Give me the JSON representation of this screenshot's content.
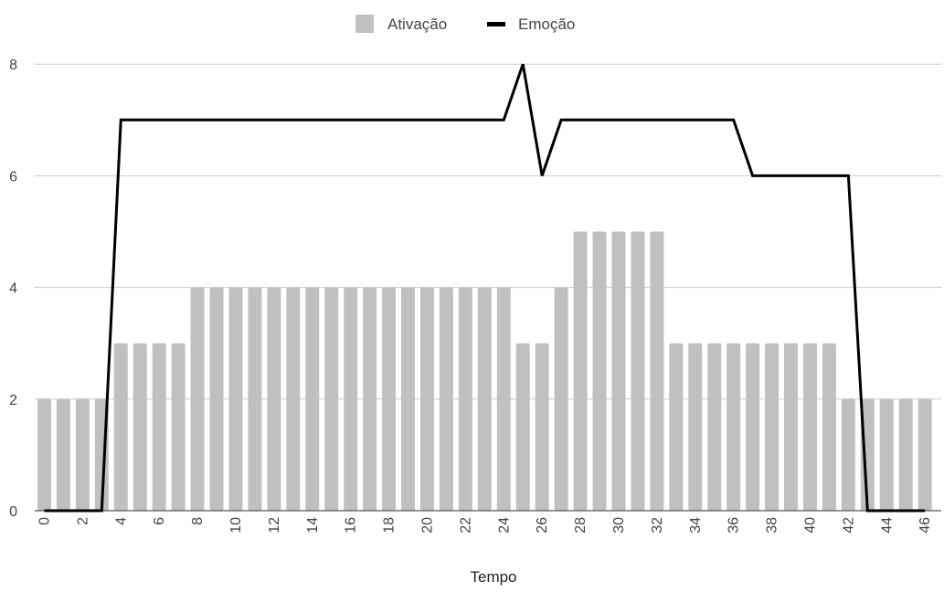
{
  "chart_data": {
    "type": "bar",
    "title": "",
    "xlabel": "Tempo",
    "ylabel": "",
    "legend_position": "top",
    "grid": true,
    "ylim": [
      0,
      8
    ],
    "yticks": [
      0,
      2,
      4,
      6,
      8
    ],
    "x": [
      0,
      1,
      2,
      3,
      4,
      5,
      6,
      7,
      8,
      9,
      10,
      11,
      12,
      13,
      14,
      15,
      16,
      17,
      18,
      19,
      20,
      21,
      22,
      23,
      24,
      25,
      26,
      27,
      28,
      29,
      30,
      31,
      32,
      33,
      34,
      35,
      36,
      37,
      38,
      39,
      40,
      41,
      42,
      43,
      44,
      45,
      46
    ],
    "xticks": [
      0,
      2,
      4,
      6,
      8,
      10,
      12,
      14,
      16,
      18,
      20,
      22,
      24,
      26,
      28,
      30,
      32,
      34,
      36,
      38,
      40,
      42,
      44,
      46
    ],
    "series": [
      {
        "name": "Ativação",
        "type": "bar",
        "color": "#c0c0c0",
        "values": [
          2,
          2,
          2,
          2,
          3,
          3,
          3,
          3,
          4,
          4,
          4,
          4,
          4,
          4,
          4,
          4,
          4,
          4,
          4,
          4,
          4,
          4,
          4,
          4,
          4,
          3,
          3,
          4,
          5,
          5,
          5,
          5,
          5,
          3,
          3,
          3,
          3,
          3,
          3,
          3,
          3,
          3,
          2,
          2,
          2,
          2,
          2
        ]
      },
      {
        "name": "Emoção",
        "type": "line",
        "color": "#000000",
        "values": [
          0,
          0,
          0,
          0,
          7,
          7,
          7,
          7,
          7,
          7,
          7,
          7,
          7,
          7,
          7,
          7,
          7,
          7,
          7,
          7,
          7,
          7,
          7,
          7,
          7,
          8,
          6,
          7,
          7,
          7,
          7,
          7,
          7,
          7,
          7,
          7,
          7,
          6,
          6,
          6,
          6,
          6,
          6,
          0,
          0,
          0,
          0
        ]
      }
    ]
  }
}
